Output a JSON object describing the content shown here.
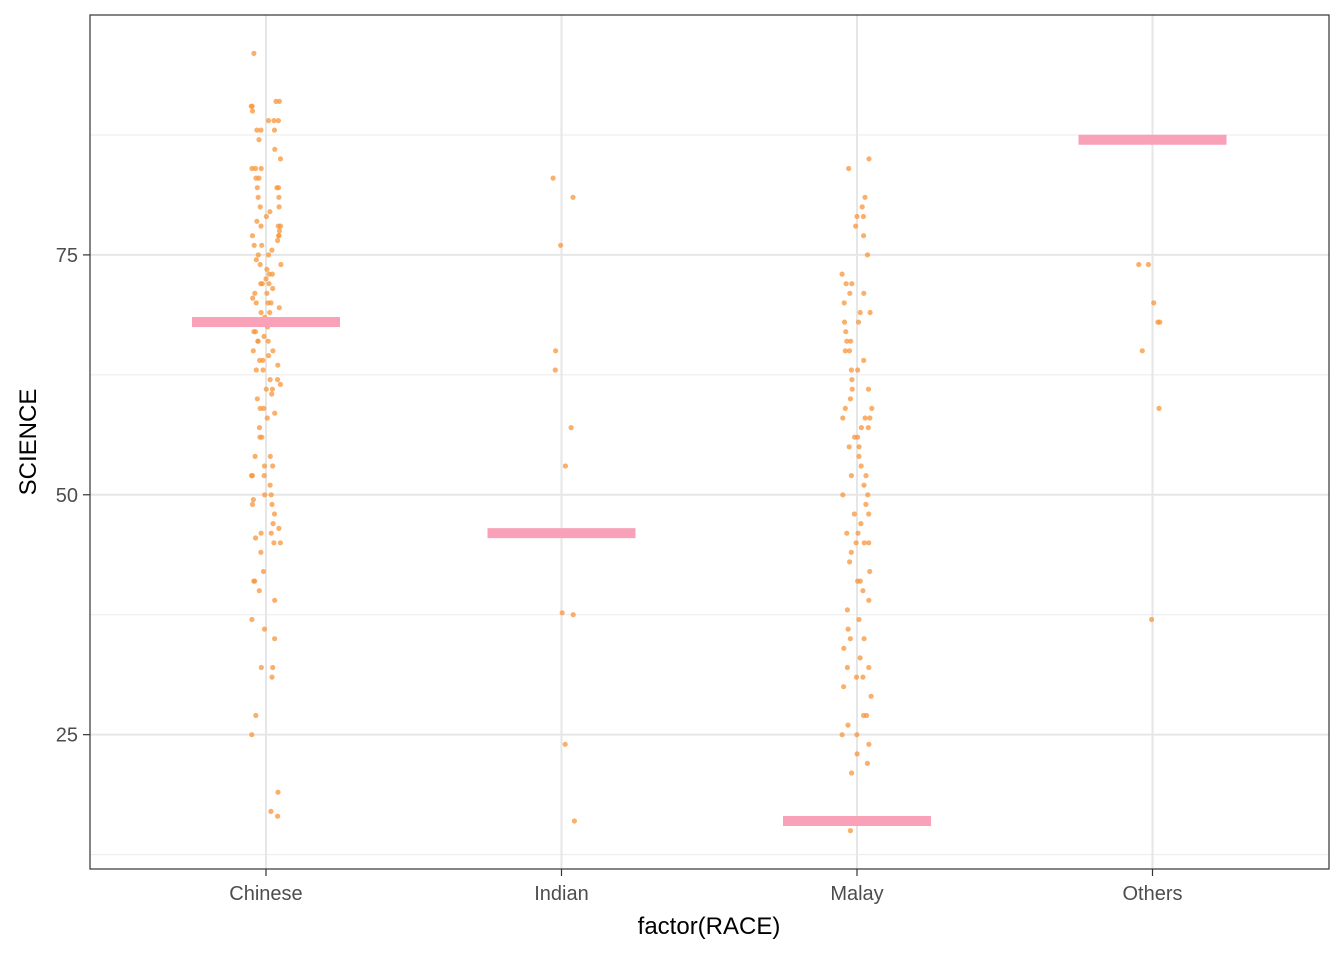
{
  "chart_data": {
    "type": "scatter",
    "subtype": "jitter-strip-with-mean-markers",
    "xlabel": "factor(RACE)",
    "ylabel": "SCIENCE",
    "categories": [
      "Chinese",
      "Indian",
      "Malay",
      "Others"
    ],
    "yticks": [
      25,
      50,
      75
    ],
    "ylim": [
      11,
      100
    ],
    "grid": true,
    "point_color": "#F8953A",
    "summary_color": "#F8A1B8",
    "summary_values": [
      68.0,
      46.0,
      16.0,
      87.0
    ],
    "series": [
      {
        "name": "Chinese",
        "y": [
          96,
          91,
          91,
          90.5,
          90.5,
          90,
          89,
          89,
          89,
          88,
          88,
          88,
          87,
          86,
          85,
          84,
          84,
          84,
          83,
          83,
          82,
          82,
          82,
          81,
          81,
          80,
          80,
          79.5,
          79,
          78.5,
          78,
          78,
          78,
          77.5,
          77,
          77,
          77,
          76.5,
          76,
          76,
          75.5,
          75,
          75,
          74.5,
          74,
          74,
          73.5,
          73,
          73,
          72.5,
          72,
          72,
          72,
          71.5,
          71,
          71,
          70.5,
          70,
          70,
          70,
          69.5,
          69,
          69,
          68.5,
          68,
          68,
          67.5,
          67,
          67,
          66.5,
          66,
          66,
          66,
          65,
          65,
          64.5,
          64,
          64,
          63.5,
          63,
          63,
          62,
          62,
          61.5,
          61,
          61,
          60.5,
          60,
          59,
          59,
          58.5,
          58,
          57,
          56,
          56,
          54,
          54,
          53,
          53,
          52,
          52,
          52,
          51,
          50,
          50,
          49.5,
          49,
          49,
          48,
          47,
          46.5,
          46,
          46,
          45.5,
          45,
          45,
          44,
          42,
          41,
          41,
          40,
          39,
          37,
          36,
          35,
          32,
          32,
          31,
          27,
          25,
          19,
          17,
          16.5
        ]
      },
      {
        "name": "Indian",
        "y": [
          83,
          81,
          76,
          65,
          63,
          57,
          53,
          37.5,
          37.7,
          24,
          16
        ]
      },
      {
        "name": "Malay",
        "y": [
          85,
          84,
          81,
          80,
          79,
          79,
          78,
          77,
          75,
          73,
          72,
          72,
          71,
          71,
          70,
          69,
          69,
          68,
          68,
          67,
          66,
          66,
          65,
          65,
          64,
          63,
          63,
          62,
          61,
          61,
          60,
          59,
          59,
          58,
          58,
          58,
          57,
          57,
          56,
          56,
          55,
          55,
          54,
          53,
          52,
          52,
          51,
          50,
          50,
          49,
          48,
          48,
          47,
          46,
          46,
          45,
          45,
          45,
          44,
          43,
          42,
          41,
          41,
          40,
          39,
          38,
          37,
          36,
          35,
          35,
          34,
          33,
          32,
          32,
          31,
          31,
          30,
          29,
          27,
          27,
          26,
          25,
          25,
          24,
          23,
          22,
          21,
          15
        ]
      },
      {
        "name": "Others",
        "y": [
          74,
          74,
          70,
          68,
          68,
          65,
          59,
          37
        ]
      }
    ]
  }
}
